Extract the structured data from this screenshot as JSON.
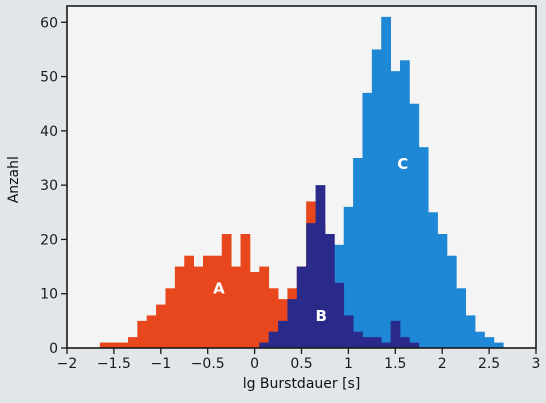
{
  "chart_data": {
    "type": "bar",
    "xlabel": "lg Burstdauer [s]",
    "ylabel": "Anzahl",
    "xlim": [
      -2,
      3
    ],
    "ylim": [
      0,
      63
    ],
    "bin_width": 0.1,
    "xticks": [
      {
        "value": -2,
        "label": "−2"
      },
      {
        "value": -1.5,
        "label": "−1.5"
      },
      {
        "value": -1,
        "label": "−1"
      },
      {
        "value": -0.5,
        "label": "−0.5"
      },
      {
        "value": 0,
        "label": "0"
      },
      {
        "value": 0.5,
        "label": "0.5"
      },
      {
        "value": 1,
        "label": "1"
      },
      {
        "value": 1.5,
        "label": "1.5"
      },
      {
        "value": 2,
        "label": "2"
      },
      {
        "value": 2.5,
        "label": "2.5"
      },
      {
        "value": 3,
        "label": "3"
      }
    ],
    "yticks": [
      {
        "value": 0,
        "label": "0"
      },
      {
        "value": 10,
        "label": "10"
      },
      {
        "value": 20,
        "label": "20"
      },
      {
        "value": 30,
        "label": "30"
      },
      {
        "value": 40,
        "label": "40"
      },
      {
        "value": 50,
        "label": "50"
      },
      {
        "value": 60,
        "label": "60"
      }
    ],
    "series": [
      {
        "name": "C",
        "color": "#1e88d6",
        "x": [
          0.4,
          0.5,
          0.6,
          0.7,
          0.8,
          0.9,
          1.0,
          1.1,
          1.2,
          1.3,
          1.4,
          1.5,
          1.6,
          1.7,
          1.8,
          1.9,
          2.0,
          2.1,
          2.2,
          2.3,
          2.4,
          2.5,
          2.6
        ],
        "values": [
          1,
          2,
          3,
          4,
          8,
          19,
          26,
          35,
          47,
          55,
          61,
          51,
          53,
          45,
          37,
          25,
          21,
          17,
          11,
          6,
          3,
          2,
          1
        ]
      },
      {
        "name": "A",
        "color": "#e8461c",
        "x": [
          -1.6,
          -1.5,
          -1.4,
          -1.3,
          -1.2,
          -1.1,
          -1.0,
          -0.9,
          -0.8,
          -0.7,
          -0.6,
          -0.5,
          -0.4,
          -0.3,
          -0.2,
          -0.1,
          0.0,
          0.1,
          0.2,
          0.3,
          0.4,
          0.5,
          0.6,
          0.7,
          0.8,
          0.9
        ],
        "values": [
          1,
          1,
          1,
          2,
          5,
          6,
          8,
          11,
          15,
          17,
          15,
          17,
          17,
          21,
          15,
          21,
          14,
          15,
          11,
          9,
          11,
          15,
          27,
          23,
          13,
          3
        ]
      },
      {
        "name": "B",
        "color": "#2a2a8a",
        "x": [
          0.1,
          0.2,
          0.3,
          0.4,
          0.5,
          0.6,
          0.7,
          0.8,
          0.9,
          1.0,
          1.1,
          1.2,
          1.3,
          1.4,
          1.5,
          1.6,
          1.7
        ],
        "values": [
          1,
          3,
          5,
          9,
          15,
          23,
          30,
          21,
          12,
          6,
          3,
          2,
          2,
          1,
          5,
          2,
          1
        ]
      }
    ],
    "labels": [
      {
        "text": "A",
        "x": -0.38,
        "y": 10
      },
      {
        "text": "B",
        "x": 0.71,
        "y": 5
      },
      {
        "text": "C",
        "x": 1.58,
        "y": 33
      }
    ]
  }
}
